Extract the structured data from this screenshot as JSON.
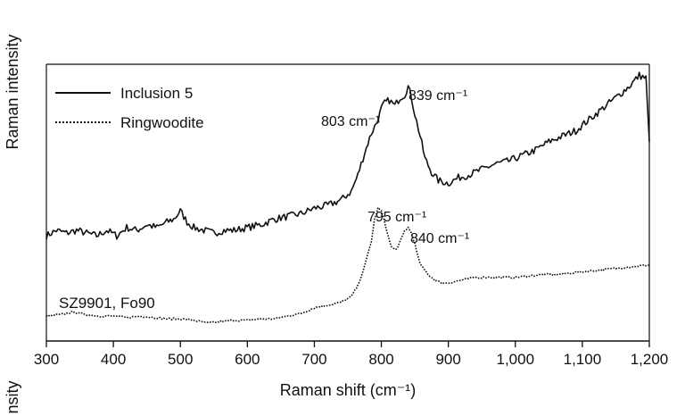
{
  "chart_data": {
    "type": "line",
    "title": "",
    "xlabel": "Raman shift (cm⁻¹)",
    "ylabel": "Raman intensity",
    "ylabel_fragment": "nsity",
    "xlim": [
      300,
      1200
    ],
    "ylim": [
      0,
      100
    ],
    "y_ticks_shown": false,
    "grid": false,
    "legend_position": "top-left",
    "x_ticks": [
      {
        "value": 300,
        "label": "300"
      },
      {
        "value": 400,
        "label": "400"
      },
      {
        "value": 500,
        "label": "500"
      },
      {
        "value": 600,
        "label": "600"
      },
      {
        "value": 700,
        "label": "700"
      },
      {
        "value": 800,
        "label": "800"
      },
      {
        "value": 900,
        "label": "900"
      },
      {
        "value": 1000,
        "label": "1,000"
      },
      {
        "value": 1100,
        "label": "1,100"
      },
      {
        "value": 1200,
        "label": "1,200"
      }
    ],
    "series": [
      {
        "name": "Inclusion 5",
        "style": "solid",
        "color": "#111111",
        "x": [
          300,
          315,
          330,
          345,
          360,
          375,
          390,
          405,
          420,
          435,
          450,
          465,
          480,
          490,
          500,
          510,
          520,
          535,
          550,
          565,
          580,
          600,
          620,
          640,
          660,
          680,
          700,
          720,
          740,
          755,
          765,
          775,
          785,
          795,
          800,
          805,
          812,
          820,
          828,
          835,
          840,
          845,
          850,
          858,
          865,
          875,
          885,
          900,
          915,
          930,
          950,
          970,
          990,
          1010,
          1030,
          1050,
          1070,
          1090,
          1110,
          1130,
          1150,
          1170,
          1185,
          1195,
          1200
        ],
        "y": [
          38,
          40,
          39,
          40,
          39,
          38,
          40,
          38,
          41,
          40,
          42,
          41,
          43,
          44,
          47,
          43,
          41,
          40,
          39,
          40,
          40,
          41,
          42,
          44,
          45,
          46,
          48,
          49,
          51,
          54,
          60,
          68,
          75,
          80,
          84,
          86,
          87,
          85,
          88,
          89,
          92,
          88,
          82,
          74,
          66,
          61,
          58,
          57,
          59,
          60,
          62,
          64,
          65,
          67,
          69,
          72,
          74,
          76,
          80,
          84,
          88,
          92,
          96,
          95,
          72
        ]
      },
      {
        "name": "Ringwoodite",
        "style": "dotted",
        "color": "#111111",
        "x": [
          300,
          320,
          340,
          360,
          380,
          400,
          420,
          440,
          460,
          480,
          500,
          520,
          540,
          560,
          580,
          600,
          620,
          640,
          660,
          680,
          700,
          720,
          740,
          755,
          765,
          775,
          785,
          790,
          795,
          800,
          805,
          810,
          815,
          820,
          825,
          830,
          835,
          840,
          845,
          850,
          855,
          860,
          870,
          880,
          890,
          900,
          920,
          940,
          960,
          980,
          1000,
          1020,
          1040,
          1060,
          1080,
          1100,
          1120,
          1140,
          1160,
          1180,
          1200
        ],
        "y": [
          9,
          9.5,
          10.5,
          9.5,
          9,
          9,
          8.5,
          9,
          8.5,
          8,
          8,
          7.5,
          6.5,
          7,
          7.5,
          7.5,
          8,
          8,
          9,
          10,
          12,
          13,
          14,
          16,
          20,
          27,
          36,
          44,
          48,
          47,
          43,
          38,
          34,
          33,
          34,
          37,
          40,
          41,
          39,
          35,
          30,
          27,
          24,
          22,
          21,
          21,
          22,
          23,
          23,
          23,
          23,
          23.5,
          24,
          24,
          24.5,
          25,
          25.5,
          26,
          26.5,
          27,
          27.5
        ]
      }
    ],
    "annotations": [
      {
        "text": "839 cm⁻¹",
        "x": 839
      },
      {
        "text": "803 cm⁻¹",
        "x": 803
      },
      {
        "text": "795 cm⁻¹",
        "x": 795
      },
      {
        "text": "840 cm⁻¹",
        "x": 840
      }
    ],
    "sample_label": "SZ9901, Fo90"
  }
}
